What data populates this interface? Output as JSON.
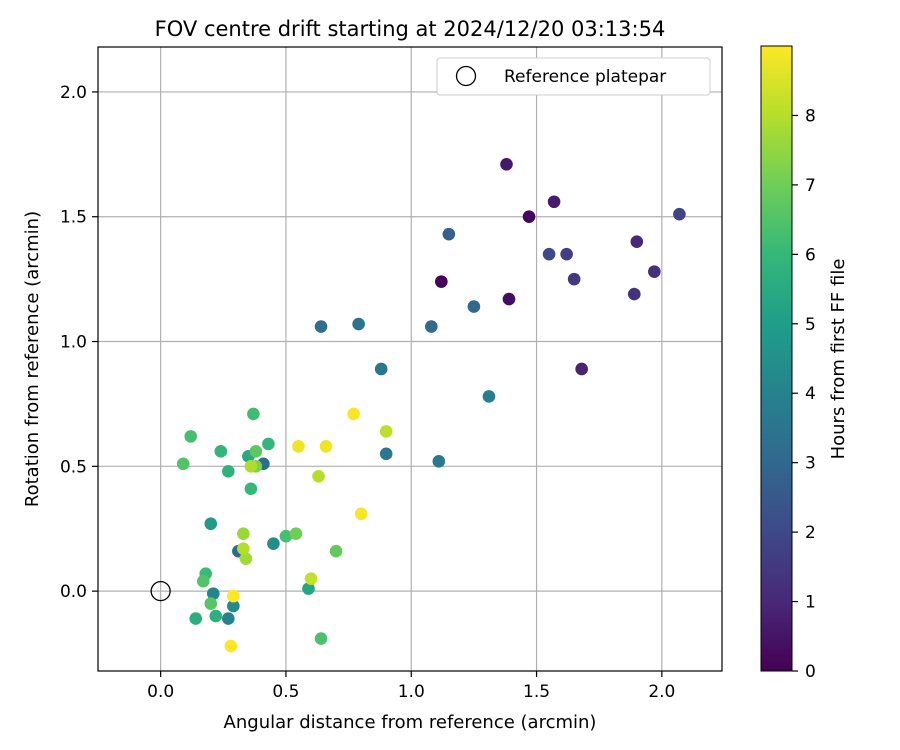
{
  "chart_data": {
    "type": "scatter",
    "title": "FOV centre drift starting at 2024/12/20 03:13:54",
    "xlabel": "Angular distance from reference (arcmin)",
    "ylabel": "Rotation from reference (arcmin)",
    "xlim": [
      -0.25,
      2.24
    ],
    "ylim": [
      -0.32,
      2.18
    ],
    "xticks": [
      0.0,
      0.5,
      1.0,
      1.5,
      2.0
    ],
    "xtick_labels": [
      "0.0",
      "0.5",
      "1.0",
      "1.5",
      "2.0"
    ],
    "yticks": [
      0.0,
      0.5,
      1.0,
      1.5,
      2.0
    ],
    "ytick_labels": [
      "0.0",
      "0.5",
      "1.0",
      "1.5",
      "2.0"
    ],
    "grid": true,
    "colormap": "viridis",
    "colorbar": {
      "label": "Hours from first FF file",
      "range": [
        0,
        9
      ],
      "ticks": [
        0,
        1,
        2,
        3,
        4,
        5,
        6,
        7,
        8
      ],
      "tick_labels": [
        "0",
        "1",
        "2",
        "3",
        "4",
        "5",
        "6",
        "7",
        "8"
      ]
    },
    "legend": {
      "placement": "top-right",
      "entries": [
        "Reference platepar"
      ]
    },
    "reference_point": {
      "x": 0.0,
      "y": 0.0,
      "label": "Reference platepar"
    },
    "points": [
      {
        "x": 1.12,
        "y": 1.24,
        "c": 0.1
      },
      {
        "x": 1.47,
        "y": 1.5,
        "c": 0.2
      },
      {
        "x": 1.39,
        "y": 1.17,
        "c": 0.3
      },
      {
        "x": 1.38,
        "y": 1.71,
        "c": 0.6
      },
      {
        "x": 1.57,
        "y": 1.56,
        "c": 0.7
      },
      {
        "x": 1.68,
        "y": 0.89,
        "c": 0.9
      },
      {
        "x": 1.9,
        "y": 1.4,
        "c": 1.0
      },
      {
        "x": 1.97,
        "y": 1.28,
        "c": 1.2
      },
      {
        "x": 1.89,
        "y": 1.19,
        "c": 1.3
      },
      {
        "x": 1.65,
        "y": 1.25,
        "c": 1.5
      },
      {
        "x": 1.62,
        "y": 1.35,
        "c": 1.7
      },
      {
        "x": 2.07,
        "y": 1.51,
        "c": 1.9
      },
      {
        "x": 1.55,
        "y": 1.35,
        "c": 2.0
      },
      {
        "x": 1.15,
        "y": 1.43,
        "c": 2.7
      },
      {
        "x": 1.25,
        "y": 1.14,
        "c": 3.0
      },
      {
        "x": 1.08,
        "y": 1.06,
        "c": 3.1
      },
      {
        "x": 0.64,
        "y": 1.06,
        "c": 3.3
      },
      {
        "x": 0.79,
        "y": 1.07,
        "c": 3.4
      },
      {
        "x": 0.88,
        "y": 0.89,
        "c": 3.5
      },
      {
        "x": 0.9,
        "y": 0.55,
        "c": 3.6
      },
      {
        "x": 1.11,
        "y": 0.52,
        "c": 3.7
      },
      {
        "x": 1.31,
        "y": 0.78,
        "c": 3.9
      },
      {
        "x": 0.31,
        "y": 0.16,
        "c": 3.1
      },
      {
        "x": 0.41,
        "y": 0.51,
        "c": 3.2
      },
      {
        "x": 0.27,
        "y": -0.11,
        "c": 4.0
      },
      {
        "x": 0.21,
        "y": -0.01,
        "c": 4.1
      },
      {
        "x": 0.29,
        "y": -0.06,
        "c": 4.3
      },
      {
        "x": 0.45,
        "y": 0.19,
        "c": 4.4
      },
      {
        "x": 0.2,
        "y": 0.27,
        "c": 4.9
      },
      {
        "x": 0.59,
        "y": 0.01,
        "c": 5.3
      },
      {
        "x": 0.35,
        "y": 0.54,
        "c": 5.4
      },
      {
        "x": 0.14,
        "y": -0.11,
        "c": 5.6
      },
      {
        "x": 0.22,
        "y": -0.1,
        "c": 5.7
      },
      {
        "x": 0.27,
        "y": 0.48,
        "c": 5.8
      },
      {
        "x": 0.24,
        "y": 0.56,
        "c": 5.9
      },
      {
        "x": 0.43,
        "y": 0.59,
        "c": 5.9
      },
      {
        "x": 0.36,
        "y": 0.41,
        "c": 6.0
      },
      {
        "x": 0.18,
        "y": 0.07,
        "c": 6.1
      },
      {
        "x": 0.37,
        "y": 0.71,
        "c": 6.2
      },
      {
        "x": 0.12,
        "y": 0.62,
        "c": 6.3
      },
      {
        "x": 0.5,
        "y": 0.22,
        "c": 6.3
      },
      {
        "x": 0.64,
        "y": -0.19,
        "c": 6.4
      },
      {
        "x": 0.17,
        "y": 0.04,
        "c": 6.5
      },
      {
        "x": 0.09,
        "y": 0.51,
        "c": 6.5
      },
      {
        "x": 0.2,
        "y": -0.05,
        "c": 6.6
      },
      {
        "x": 0.38,
        "y": 0.56,
        "c": 6.7
      },
      {
        "x": 0.7,
        "y": 0.16,
        "c": 6.8
      },
      {
        "x": 0.54,
        "y": 0.23,
        "c": 7.0
      },
      {
        "x": 0.38,
        "y": 0.5,
        "c": 7.2
      },
      {
        "x": 0.33,
        "y": 0.23,
        "c": 7.6
      },
      {
        "x": 0.34,
        "y": 0.13,
        "c": 7.7
      },
      {
        "x": 0.36,
        "y": 0.5,
        "c": 7.9
      },
      {
        "x": 0.33,
        "y": 0.17,
        "c": 8.0
      },
      {
        "x": 0.63,
        "y": 0.46,
        "c": 8.0
      },
      {
        "x": 0.9,
        "y": 0.64,
        "c": 8.1
      },
      {
        "x": 0.6,
        "y": 0.05,
        "c": 8.2
      },
      {
        "x": 0.55,
        "y": 0.58,
        "c": 8.8
      },
      {
        "x": 0.66,
        "y": 0.58,
        "c": 8.8
      },
      {
        "x": 0.77,
        "y": 0.71,
        "c": 8.9
      },
      {
        "x": 0.8,
        "y": 0.31,
        "c": 8.9
      },
      {
        "x": 0.29,
        "y": -0.02,
        "c": 9.0
      },
      {
        "x": 0.28,
        "y": -0.22,
        "c": 9.0
      }
    ]
  }
}
